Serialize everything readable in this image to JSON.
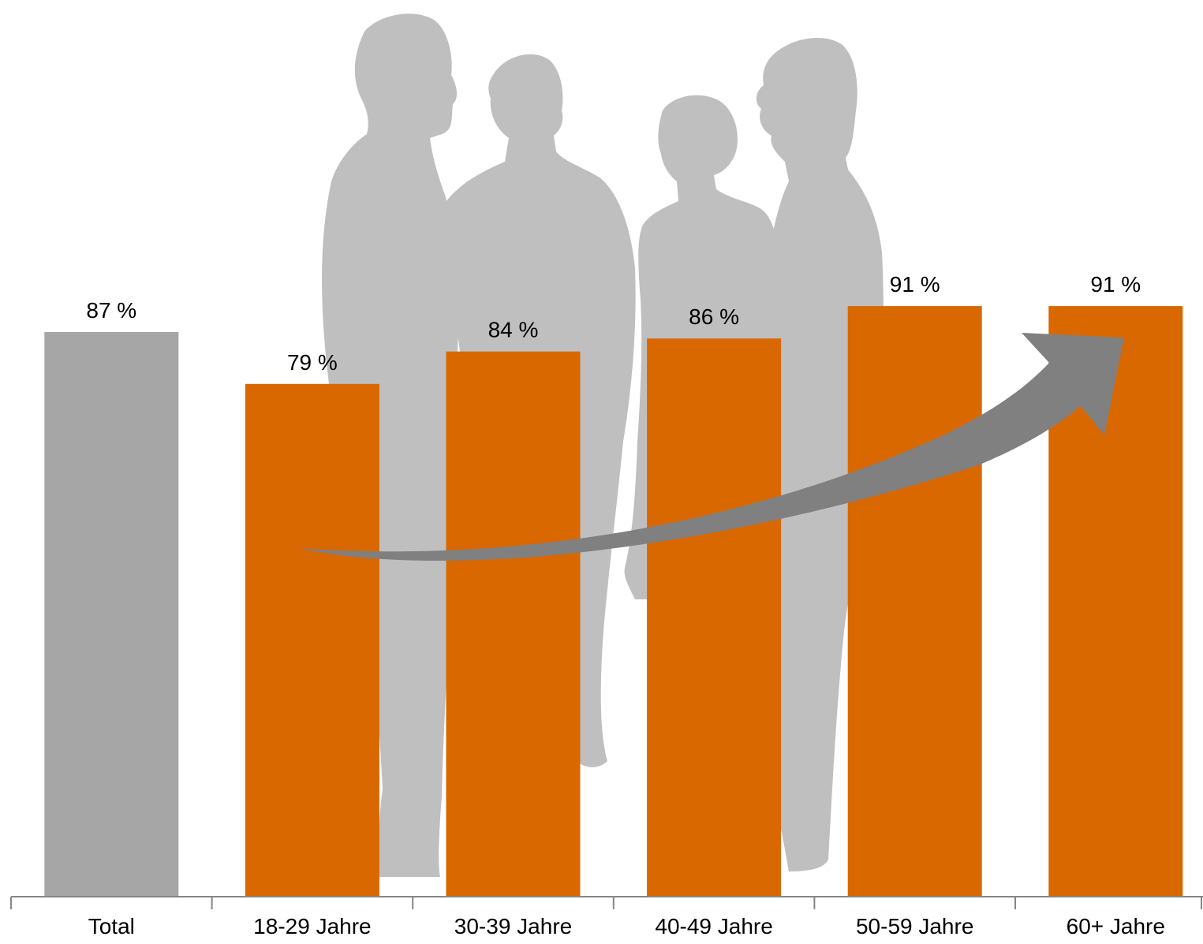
{
  "chart_data": {
    "type": "bar",
    "categories": [
      "Total",
      "18-29 Jahre",
      "30-39 Jahre",
      "40-49 Jahre",
      "50-59 Jahre",
      "60+ Jahre"
    ],
    "values": [
      87,
      79,
      84,
      86,
      91,
      91
    ],
    "value_labels": [
      "87 %",
      "79 %",
      "84 %",
      "86 %",
      "91 %",
      "91 %"
    ],
    "ylim": [
      0,
      100
    ],
    "grid": false,
    "legend": "none",
    "colors": {
      "total": "#a6a6a6",
      "age_groups": "#d96800",
      "trend_arrow": "#808080",
      "silhouette": "#bfbfbf",
      "axis": "#868686"
    },
    "annotations": [
      "trend-arrow"
    ]
  }
}
